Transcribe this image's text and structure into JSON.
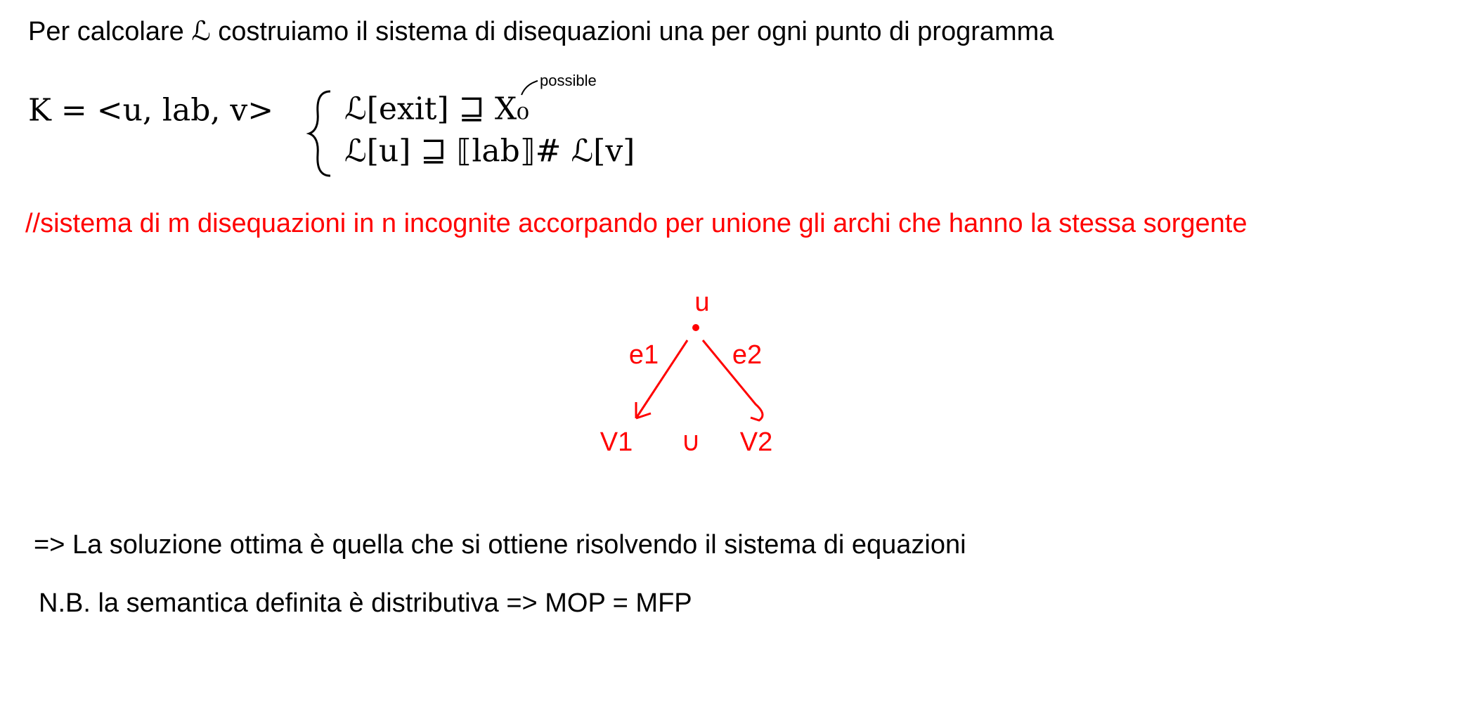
{
  "intro": "Per calcolare ℒ costruiamo il sistema di disequazioni una per ogni punto di programma",
  "edge_def": "K = <u, lab, v>",
  "system": {
    "first": "ℒ[exit] ⊒ X₀",
    "annotation": "possible",
    "second": "ℒ[u] ⊒ ⟦lab⟧# ℒ[v]"
  },
  "note": "//sistema di m disequazioni in n incognite accorpando per unione gli archi che hanno la stessa sorgente",
  "diagram": {
    "source": "u",
    "edges": [
      "e1",
      "e2"
    ],
    "targets": [
      "V1",
      "V2"
    ],
    "join": "∪"
  },
  "conclusion": "=> La soluzione ottima è quella che si ottiene risolvendo il sistema di equazioni",
  "nb": "N.B. la semantica definita è distributiva => MOP = MFP"
}
